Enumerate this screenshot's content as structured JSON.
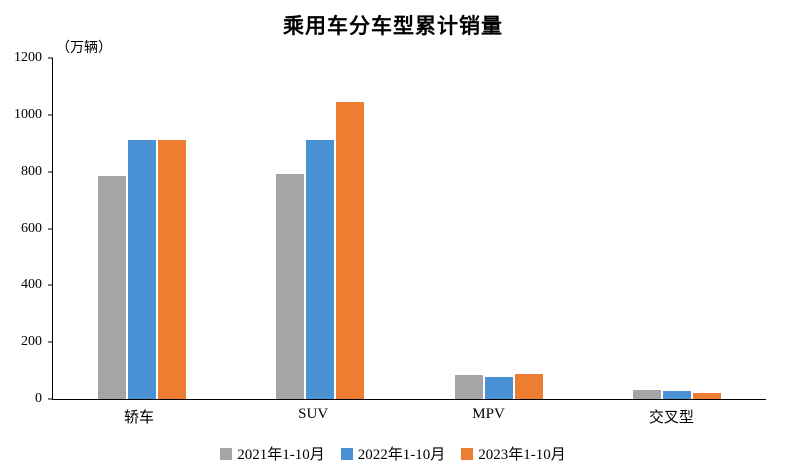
{
  "chart_data": {
    "type": "bar",
    "title": "乘用车分车型累计销量",
    "ylabel": "（万辆）",
    "xlabel": "",
    "categories": [
      "轿车",
      "SUV",
      "MPV",
      "交叉型"
    ],
    "series": [
      {
        "name": "2021年1-10月",
        "color": "#A5A5A5",
        "values": [
          785,
          792,
          85,
          33
        ]
      },
      {
        "name": "2022年1-10月",
        "color": "#4A90D5",
        "values": [
          910,
          912,
          78,
          28
        ]
      },
      {
        "name": "2023年1-10月",
        "color": "#ED7D31",
        "values": [
          912,
          1045,
          88,
          22
        ]
      }
    ],
    "ylim": [
      0,
      1200
    ],
    "yticks": [
      0,
      200,
      400,
      600,
      800,
      1000,
      1200
    ],
    "grid": false,
    "legend_position": "bottom"
  }
}
